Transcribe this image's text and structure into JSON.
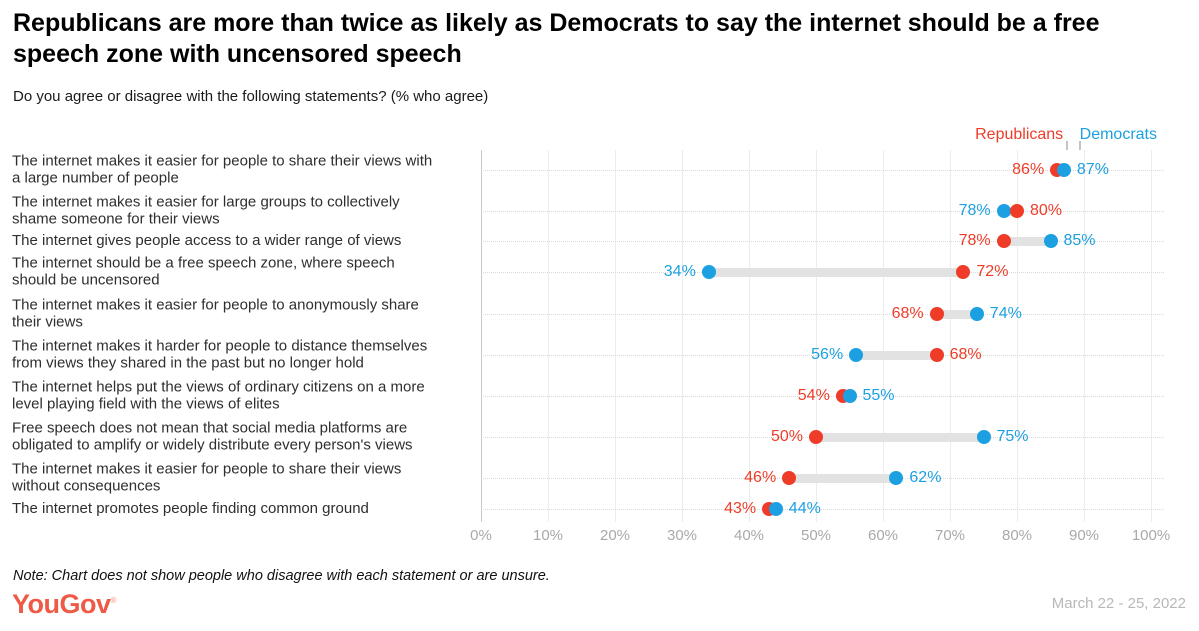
{
  "header": {
    "title": "Republicans are more than twice as likely as Democrats to say the internet should be a free speech zone with uncensored speech",
    "subtitle": "Do you agree or disagree with the following statements? (% who agree)"
  },
  "legend": {
    "republicans": "Republicans",
    "democrats": "Democrats"
  },
  "colors": {
    "republicans": "#ee3c28",
    "democrats": "#1ca0e2",
    "connector": "#e2e2e2",
    "logo": "#ee5a46"
  },
  "chart_data": {
    "type": "scatter",
    "variant": "dumbbell",
    "title": "Republicans are more than twice as likely as Democrats to say the internet should be a free speech zone with uncensored speech",
    "subtitle": "Do you agree or disagree with the following statements? (% who agree)",
    "xlabel": "",
    "ylabel": "",
    "xlim": [
      0,
      100
    ],
    "x_tick_labels": [
      "0%",
      "10%",
      "20%",
      "30%",
      "40%",
      "50%",
      "60%",
      "70%",
      "80%",
      "90%",
      "100%"
    ],
    "grid": "vertical-solid-plus-row-dotted",
    "legend_position": "top-right",
    "series_names": [
      "Republicans",
      "Democrats"
    ],
    "rows": [
      {
        "label": "The internet makes it easier for people to share their views with a large number of people",
        "label_lines": [
          "The internet makes it easier for people to share their views with",
          "a large number of people"
        ],
        "republicans": 86,
        "democrats": 87
      },
      {
        "label": "The internet makes it easier for large groups to collectively shame someone for their views",
        "label_lines": [
          "The internet makes it easier for large groups to collectively",
          "shame someone for their views"
        ],
        "republicans": 80,
        "democrats": 78
      },
      {
        "label": "The internet gives people access to a wider range of views",
        "label_lines": [
          "The internet gives people access to a wider range of views"
        ],
        "republicans": 78,
        "democrats": 85
      },
      {
        "label": "The internet should be a free speech zone, where speech should be uncensored",
        "label_lines": [
          "The internet should be a free speech zone, where speech",
          "should be uncensored"
        ],
        "republicans": 72,
        "democrats": 34
      },
      {
        "label": "The internet makes it easier for people to anonymously share their views",
        "label_lines": [
          "The internet makes it easier for people to anonymously share",
          "their views"
        ],
        "republicans": 68,
        "democrats": 74
      },
      {
        "label": "The internet makes it harder for people to distance themselves from views they shared in the past but no longer hold",
        "label_lines": [
          "The internet makes it harder for people to distance themselves",
          "from views they shared in the past but no longer hold"
        ],
        "republicans": 68,
        "democrats": 56
      },
      {
        "label": "The internet helps put the views of ordinary citizens on a more level playing field with the views of elites",
        "label_lines": [
          "The internet helps put the views of ordinary citizens on a more",
          "level playing field with the views of elites"
        ],
        "republicans": 54,
        "democrats": 55
      },
      {
        "label": "Free speech does not mean that social media platforms are obligated to amplify or widely distribute every person's views",
        "label_lines": [
          "Free speech does not mean that social media platforms are",
          "obligated to amplify or widely distribute every person's views"
        ],
        "republicans": 50,
        "democrats": 75
      },
      {
        "label": "The internet makes it easier for people to share their views without consequences",
        "label_lines": [
          "The internet makes it easier for people to share their views",
          "without consequences"
        ],
        "republicans": 46,
        "democrats": 62
      },
      {
        "label": "The internet promotes people finding common ground",
        "label_lines": [
          "The internet promotes people finding common ground"
        ],
        "republicans": 43,
        "democrats": 44
      }
    ]
  },
  "footer": {
    "note": "Note: Chart does not show people who disagree with each statement or are unsure.",
    "logo": "YouGov",
    "logo_mark": "®",
    "date": "March 22 - 25, 2022"
  }
}
